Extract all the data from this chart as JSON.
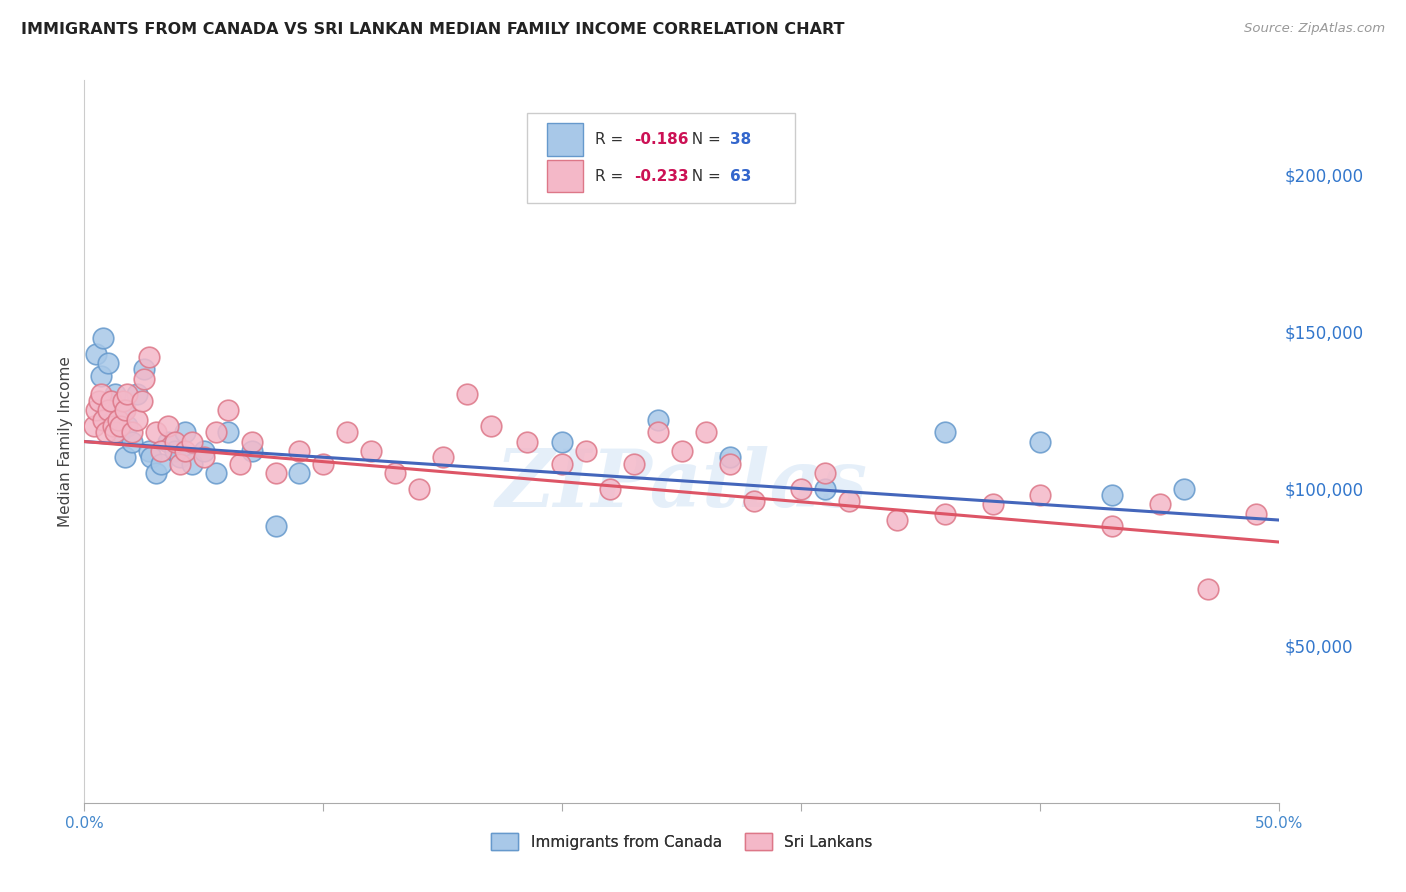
{
  "title": "IMMIGRANTS FROM CANADA VS SRI LANKAN MEDIAN FAMILY INCOME CORRELATION CHART",
  "source": "Source: ZipAtlas.com",
  "ylabel": "Median Family Income",
  "right_yticks": [
    0,
    50000,
    100000,
    150000,
    200000
  ],
  "right_yticklabels": [
    "",
    "$50,000",
    "$100,000",
    "$150,000",
    "$200,000"
  ],
  "xmin": 0.0,
  "xmax": 0.5,
  "ymin": 0,
  "ymax": 230000,
  "blue_R": -0.186,
  "blue_N": 38,
  "pink_R": -0.233,
  "pink_N": 63,
  "blue_color": "#a8c8e8",
  "blue_edge": "#6699cc",
  "pink_color": "#f4b8c8",
  "pink_edge": "#dd7788",
  "blue_line_color": "#4466bb",
  "pink_line_color": "#dd5566",
  "watermark": "ZIPatlas",
  "background_color": "#ffffff",
  "grid_color": "#dddddd",
  "blue_x": [
    0.005,
    0.007,
    0.008,
    0.009,
    0.01,
    0.011,
    0.012,
    0.013,
    0.015,
    0.016,
    0.017,
    0.018,
    0.02,
    0.022,
    0.025,
    0.027,
    0.028,
    0.03,
    0.032,
    0.035,
    0.038,
    0.04,
    0.042,
    0.045,
    0.05,
    0.055,
    0.06,
    0.07,
    0.08,
    0.09,
    0.2,
    0.24,
    0.27,
    0.31,
    0.36,
    0.4,
    0.43,
    0.46
  ],
  "blue_y": [
    143000,
    136000,
    148000,
    125000,
    140000,
    128000,
    122000,
    130000,
    118000,
    125000,
    110000,
    120000,
    115000,
    130000,
    138000,
    112000,
    110000,
    105000,
    108000,
    115000,
    112000,
    110000,
    118000,
    108000,
    112000,
    105000,
    118000,
    112000,
    88000,
    105000,
    115000,
    122000,
    110000,
    100000,
    118000,
    115000,
    98000,
    100000
  ],
  "pink_x": [
    0.004,
    0.005,
    0.006,
    0.007,
    0.008,
    0.009,
    0.01,
    0.011,
    0.012,
    0.013,
    0.014,
    0.015,
    0.016,
    0.017,
    0.018,
    0.02,
    0.022,
    0.024,
    0.025,
    0.027,
    0.03,
    0.032,
    0.035,
    0.038,
    0.04,
    0.042,
    0.045,
    0.05,
    0.055,
    0.06,
    0.065,
    0.07,
    0.08,
    0.09,
    0.1,
    0.11,
    0.12,
    0.13,
    0.14,
    0.15,
    0.16,
    0.17,
    0.185,
    0.2,
    0.21,
    0.22,
    0.23,
    0.24,
    0.25,
    0.26,
    0.27,
    0.28,
    0.3,
    0.31,
    0.32,
    0.34,
    0.36,
    0.38,
    0.4,
    0.43,
    0.45,
    0.47,
    0.49
  ],
  "pink_y": [
    120000,
    125000,
    128000,
    130000,
    122000,
    118000,
    125000,
    128000,
    120000,
    118000,
    122000,
    120000,
    128000,
    125000,
    130000,
    118000,
    122000,
    128000,
    135000,
    142000,
    118000,
    112000,
    120000,
    115000,
    108000,
    112000,
    115000,
    110000,
    118000,
    125000,
    108000,
    115000,
    105000,
    112000,
    108000,
    118000,
    112000,
    105000,
    100000,
    110000,
    130000,
    120000,
    115000,
    108000,
    112000,
    100000,
    108000,
    118000,
    112000,
    118000,
    108000,
    96000,
    100000,
    105000,
    96000,
    90000,
    92000,
    95000,
    98000,
    88000,
    95000,
    68000,
    92000
  ]
}
